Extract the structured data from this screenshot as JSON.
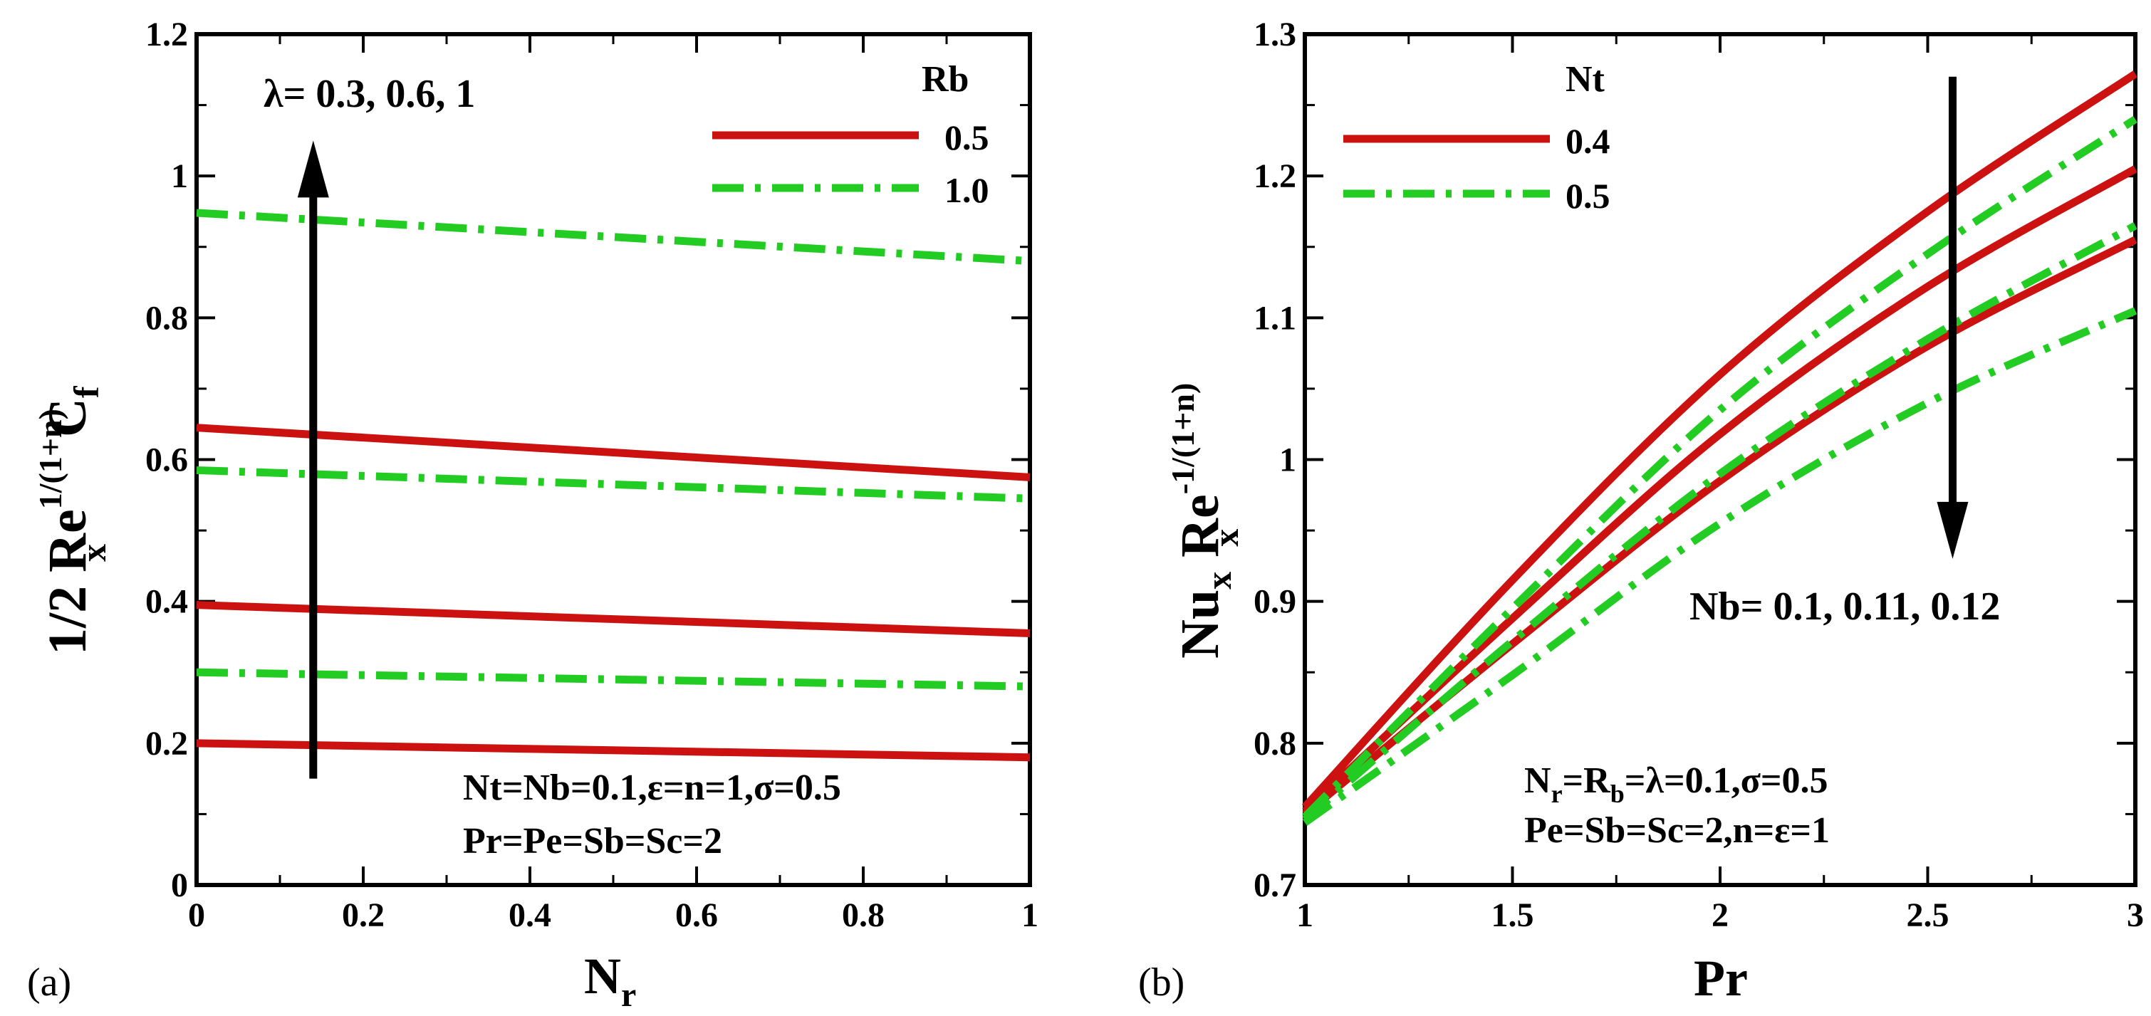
{
  "colors": {
    "series_a": "#cc1111",
    "series_b": "#22cc22",
    "axis": "#000000"
  },
  "chart_data": [
    {
      "panel": "(a)",
      "type": "line",
      "xlabel": "N",
      "xlabel_sub": "r",
      "ylabel": {
        "main": "1/2 Re",
        "sup": "1/(1+n)",
        "sub": "x",
        "tail": "C",
        "tail_sub": "f"
      },
      "xlim": [
        0,
        1
      ],
      "ylim": [
        0,
        1.2
      ],
      "xticks": [
        "0",
        "0.2",
        "0.4",
        "0.6",
        "0.8",
        "1"
      ],
      "yticks": [
        "0",
        "0.2",
        "0.4",
        "0.6",
        "0.8",
        "1",
        "1.2"
      ],
      "legend": {
        "title": "Rb",
        "entries": [
          "0.5",
          "1.0"
        ],
        "position": "top-right"
      },
      "series": [
        {
          "name": "0.5",
          "style": "solid",
          "group": "λ=0.3",
          "x": [
            0,
            1
          ],
          "y": [
            0.2,
            0.18
          ]
        },
        {
          "name": "0.5",
          "style": "solid",
          "group": "λ=0.6",
          "x": [
            0,
            1
          ],
          "y": [
            0.395,
            0.355
          ]
        },
        {
          "name": "0.5",
          "style": "solid",
          "group": "λ=1",
          "x": [
            0,
            1
          ],
          "y": [
            0.645,
            0.575
          ]
        },
        {
          "name": "1.0",
          "style": "dashdot",
          "group": "λ=0.3",
          "x": [
            0,
            1
          ],
          "y": [
            0.3,
            0.28
          ]
        },
        {
          "name": "1.0",
          "style": "dashdot",
          "group": "λ=0.6",
          "x": [
            0,
            1
          ],
          "y": [
            0.585,
            0.545
          ]
        },
        {
          "name": "1.0",
          "style": "dashdot",
          "group": "λ=1",
          "x": [
            0,
            1
          ],
          "y": [
            0.948,
            0.88
          ]
        }
      ],
      "arrow": {
        "label": "λ= 0.3, 0.6, 1",
        "direction": "up",
        "x": 0.14,
        "from": 0.15,
        "to": 1.05
      },
      "annotations": [
        {
          "text": "Nt=Nb=0.1,ε=n=1,σ=0.5"
        },
        {
          "text": "Pr=Pe=Sb=Sc=2"
        }
      ]
    },
    {
      "panel": "(b)",
      "type": "line",
      "xlabel": "Pr",
      "ylabel": {
        "main": "Nu",
        "main_sub": "x",
        "mid": "Re",
        "sup": "-1/(1+n)",
        "sub": "x"
      },
      "xlim": [
        1,
        3
      ],
      "ylim": [
        0.7,
        1.3
      ],
      "xticks": [
        "1",
        "1.5",
        "2",
        "2.5",
        "3"
      ],
      "yticks": [
        "0.7",
        "0.8",
        "0.9",
        "1",
        "1.1",
        "1.2",
        "1.3"
      ],
      "legend": {
        "title": "Nt",
        "entries": [
          "0.4",
          "0.5"
        ],
        "position": "top-left"
      },
      "series": [
        {
          "name": "0.4",
          "style": "solid",
          "group": "Nb=0.1",
          "x": [
            1,
            1.5,
            2,
            2.5,
            3
          ],
          "y": [
            0.755,
            0.915,
            1.06,
            1.175,
            1.272
          ]
        },
        {
          "name": "0.4",
          "style": "solid",
          "group": "Nb=0.11",
          "x": [
            1,
            1.5,
            2,
            2.5,
            3
          ],
          "y": [
            0.752,
            0.888,
            1.018,
            1.122,
            1.205
          ]
        },
        {
          "name": "0.4",
          "style": "solid",
          "group": "Nb=0.12",
          "x": [
            1,
            1.5,
            2,
            2.5,
            3
          ],
          "y": [
            0.75,
            0.87,
            0.985,
            1.08,
            1.155
          ]
        },
        {
          "name": "0.5",
          "style": "dashdot",
          "group": "Nb=0.1",
          "x": [
            1,
            1.5,
            2,
            2.5,
            3
          ],
          "y": [
            0.748,
            0.895,
            1.035,
            1.145,
            1.24
          ]
        },
        {
          "name": "0.5",
          "style": "dashdot",
          "group": "Nb=0.11",
          "x": [
            1,
            1.5,
            2,
            2.5,
            3
          ],
          "y": [
            0.746,
            0.872,
            0.99,
            1.085,
            1.165
          ]
        },
        {
          "name": "0.5",
          "style": "dashdot",
          "group": "Nb=0.12",
          "x": [
            1,
            1.5,
            2,
            2.5,
            3
          ],
          "y": [
            0.744,
            0.848,
            0.955,
            1.04,
            1.105
          ]
        }
      ],
      "arrow": {
        "label": "Nb= 0.1, 0.11, 0.12",
        "direction": "down",
        "x": 2.56,
        "from": 1.27,
        "to": 0.93
      },
      "annotations": [
        {
          "text": "N",
          "sub": "r",
          "mid": "=R",
          "sub2": "b",
          "tail": "=λ=0.1,σ=0.5"
        },
        {
          "text": "Pe=Sb=Sc=2,n=ε=1"
        }
      ]
    }
  ]
}
